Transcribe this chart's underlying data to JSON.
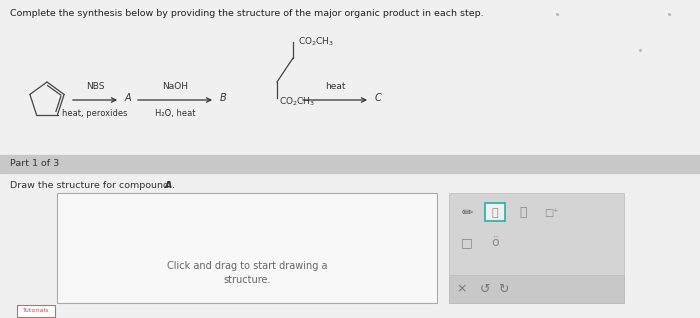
{
  "bg_color": "#e0e0e0",
  "white_bg": "#f5f5f5",
  "header_text": "Complete the synthesis below by providing the structure of the major organic product in each step.",
  "header_fontsize": 6.8,
  "header_color": "#222222",
  "part_label": "Part 1 of 3",
  "draw_prompt_normal": "Draw the structure for compound ",
  "draw_prompt_bold": "A",
  "draw_sub_prompt": "Click and drag to start drawing a\nstructure.",
  "arrow_color": "#333333",
  "text_color": "#333333",
  "reaction_area_bg": "#f0f0f0",
  "panel_bg": "#eeeeee",
  "toolbar_bg": "#d4d4d4",
  "toolbar_bottom_bg": "#c8c8c8",
  "gray_bar_color": "#c8c8c8",
  "tut_border": "#cc6666",
  "tut_bg": "#ffffff",
  "dot_color": "#bbbbbb"
}
